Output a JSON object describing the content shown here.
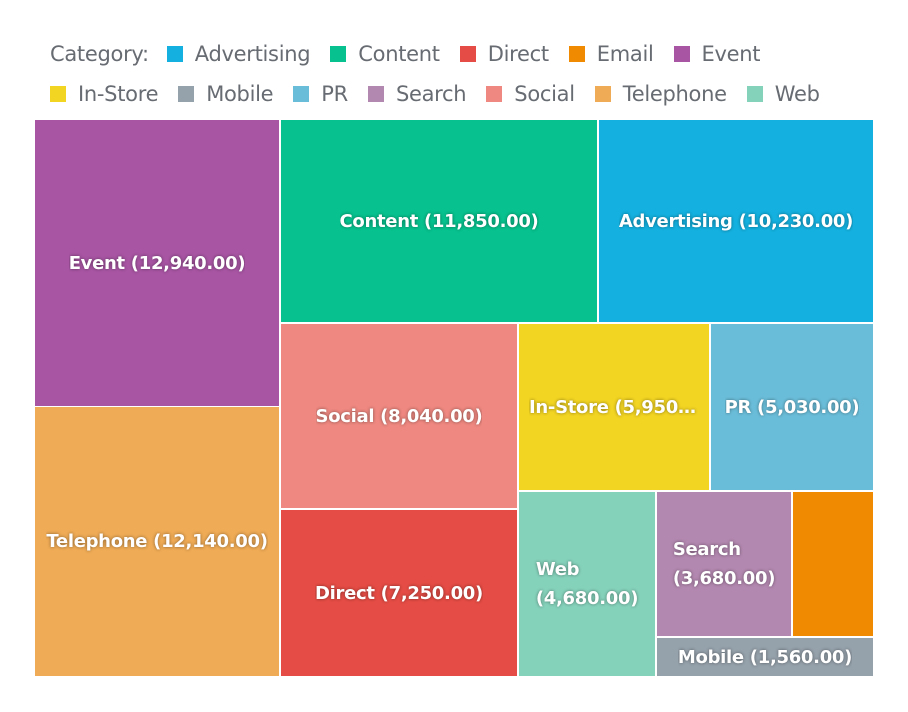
{
  "chart_data": {
    "type": "treemap",
    "legend": {
      "title": "Category:",
      "placement": "top"
    },
    "value_format": "{name} ({value})",
    "items": [
      {
        "name": "Event",
        "value": 12940.0,
        "label": "Event (12,940.00)",
        "color": "#a855a3"
      },
      {
        "name": "Telephone",
        "value": 12140.0,
        "label": "Telephone (12,140.00)",
        "color": "#efab55"
      },
      {
        "name": "Content",
        "value": 11850.0,
        "label": "Content (11,850.00)",
        "color": "#07c28e"
      },
      {
        "name": "Advertising",
        "value": 10230.0,
        "label": "Advertising (10,230.00)",
        "color": "#14b1e0"
      },
      {
        "name": "Social",
        "value": 8040.0,
        "label": "Social (8,040.00)",
        "color": "#ee8880"
      },
      {
        "name": "Direct",
        "value": 7250.0,
        "label": "Direct (7,250.00)",
        "color": "#e54c45"
      },
      {
        "name": "In-Store",
        "value": 5950.0,
        "label": "In-Store (5,950.…",
        "color": "#f2d422"
      },
      {
        "name": "PR",
        "value": 5030.0,
        "label": "PR (5,030.00)",
        "color": "#6abdd9"
      },
      {
        "name": "Web",
        "value": 4680.0,
        "label": "Web (4,680.00)",
        "color": "#85d2bb"
      },
      {
        "name": "Search",
        "value": 3680.0,
        "label": "Search (3,680.00)",
        "color": "#b388b0"
      },
      {
        "name": "Email",
        "value": 2210,
        "label": "",
        "color": "#f08a00"
      },
      {
        "name": "Mobile",
        "value": 1560.0,
        "label": "Mobile (1,560.00)",
        "color": "#95a1ab"
      }
    ],
    "legend_order": [
      "Advertising",
      "Content",
      "Direct",
      "Email",
      "Event",
      "In-Store",
      "Mobile",
      "PR",
      "Search",
      "Social",
      "Telephone",
      "Web"
    ]
  }
}
